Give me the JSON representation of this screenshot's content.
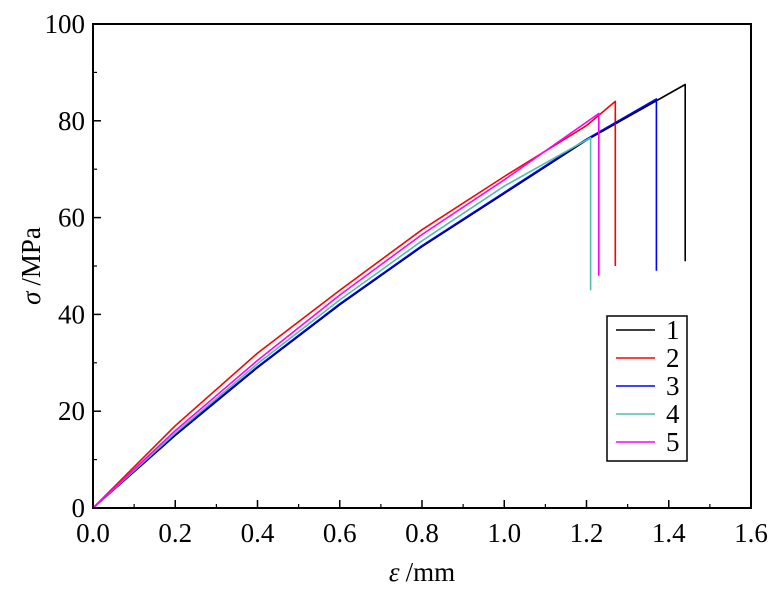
{
  "chart_data": {
    "type": "line",
    "title": "",
    "xlabel": {
      "symbol": "ε",
      "unit": "/mm"
    },
    "ylabel": {
      "symbol": "σ",
      "unit": "/MPa"
    },
    "xlim": [
      0.0,
      1.6
    ],
    "ylim": [
      0,
      100
    ],
    "xticks": [
      "0.0",
      "0.2",
      "0.4",
      "0.6",
      "0.8",
      "1.0",
      "1.2",
      "1.4",
      "1.6"
    ],
    "yticks": [
      "0",
      "20",
      "40",
      "60",
      "80",
      "100"
    ],
    "legend_position": "center-right",
    "grid": false,
    "series": [
      {
        "name": "1",
        "color": "#000000",
        "points": [
          [
            0,
            0
          ],
          [
            0.2,
            15
          ],
          [
            0.4,
            29
          ],
          [
            0.6,
            42
          ],
          [
            0.8,
            54
          ],
          [
            1.0,
            65
          ],
          [
            1.2,
            76
          ],
          [
            1.44,
            87.5
          ],
          [
            1.44,
            51
          ]
        ]
      },
      {
        "name": "2",
        "color": "#ff0000",
        "points": [
          [
            0,
            0
          ],
          [
            0.2,
            17
          ],
          [
            0.4,
            32
          ],
          [
            0.6,
            45
          ],
          [
            0.8,
            57.5
          ],
          [
            1.0,
            68.5
          ],
          [
            1.2,
            79
          ],
          [
            1.27,
            84
          ],
          [
            1.27,
            50
          ]
        ]
      },
      {
        "name": "3",
        "color": "#0000ff",
        "points": [
          [
            0,
            0
          ],
          [
            0.2,
            15.2
          ],
          [
            0.4,
            29.2
          ],
          [
            0.6,
            42.2
          ],
          [
            0.8,
            54.2
          ],
          [
            1.0,
            65.2
          ],
          [
            1.2,
            76.2
          ],
          [
            1.37,
            84.5
          ],
          [
            1.37,
            49
          ]
        ]
      },
      {
        "name": "4",
        "color": "#4fbfa8",
        "points": [
          [
            0,
            0
          ],
          [
            0.2,
            15.5
          ],
          [
            0.4,
            29.8
          ],
          [
            0.6,
            43
          ],
          [
            0.8,
            55.2
          ],
          [
            1.0,
            66.5
          ],
          [
            1.21,
            76.5
          ],
          [
            1.21,
            45
          ]
        ]
      },
      {
        "name": "5",
        "color": "#ff00ff",
        "points": [
          [
            0,
            0
          ],
          [
            0.2,
            16
          ],
          [
            0.4,
            30.5
          ],
          [
            0.6,
            44
          ],
          [
            0.8,
            56.5
          ],
          [
            1.0,
            67.8
          ],
          [
            1.23,
            81.5
          ],
          [
            1.23,
            48
          ]
        ]
      }
    ]
  }
}
